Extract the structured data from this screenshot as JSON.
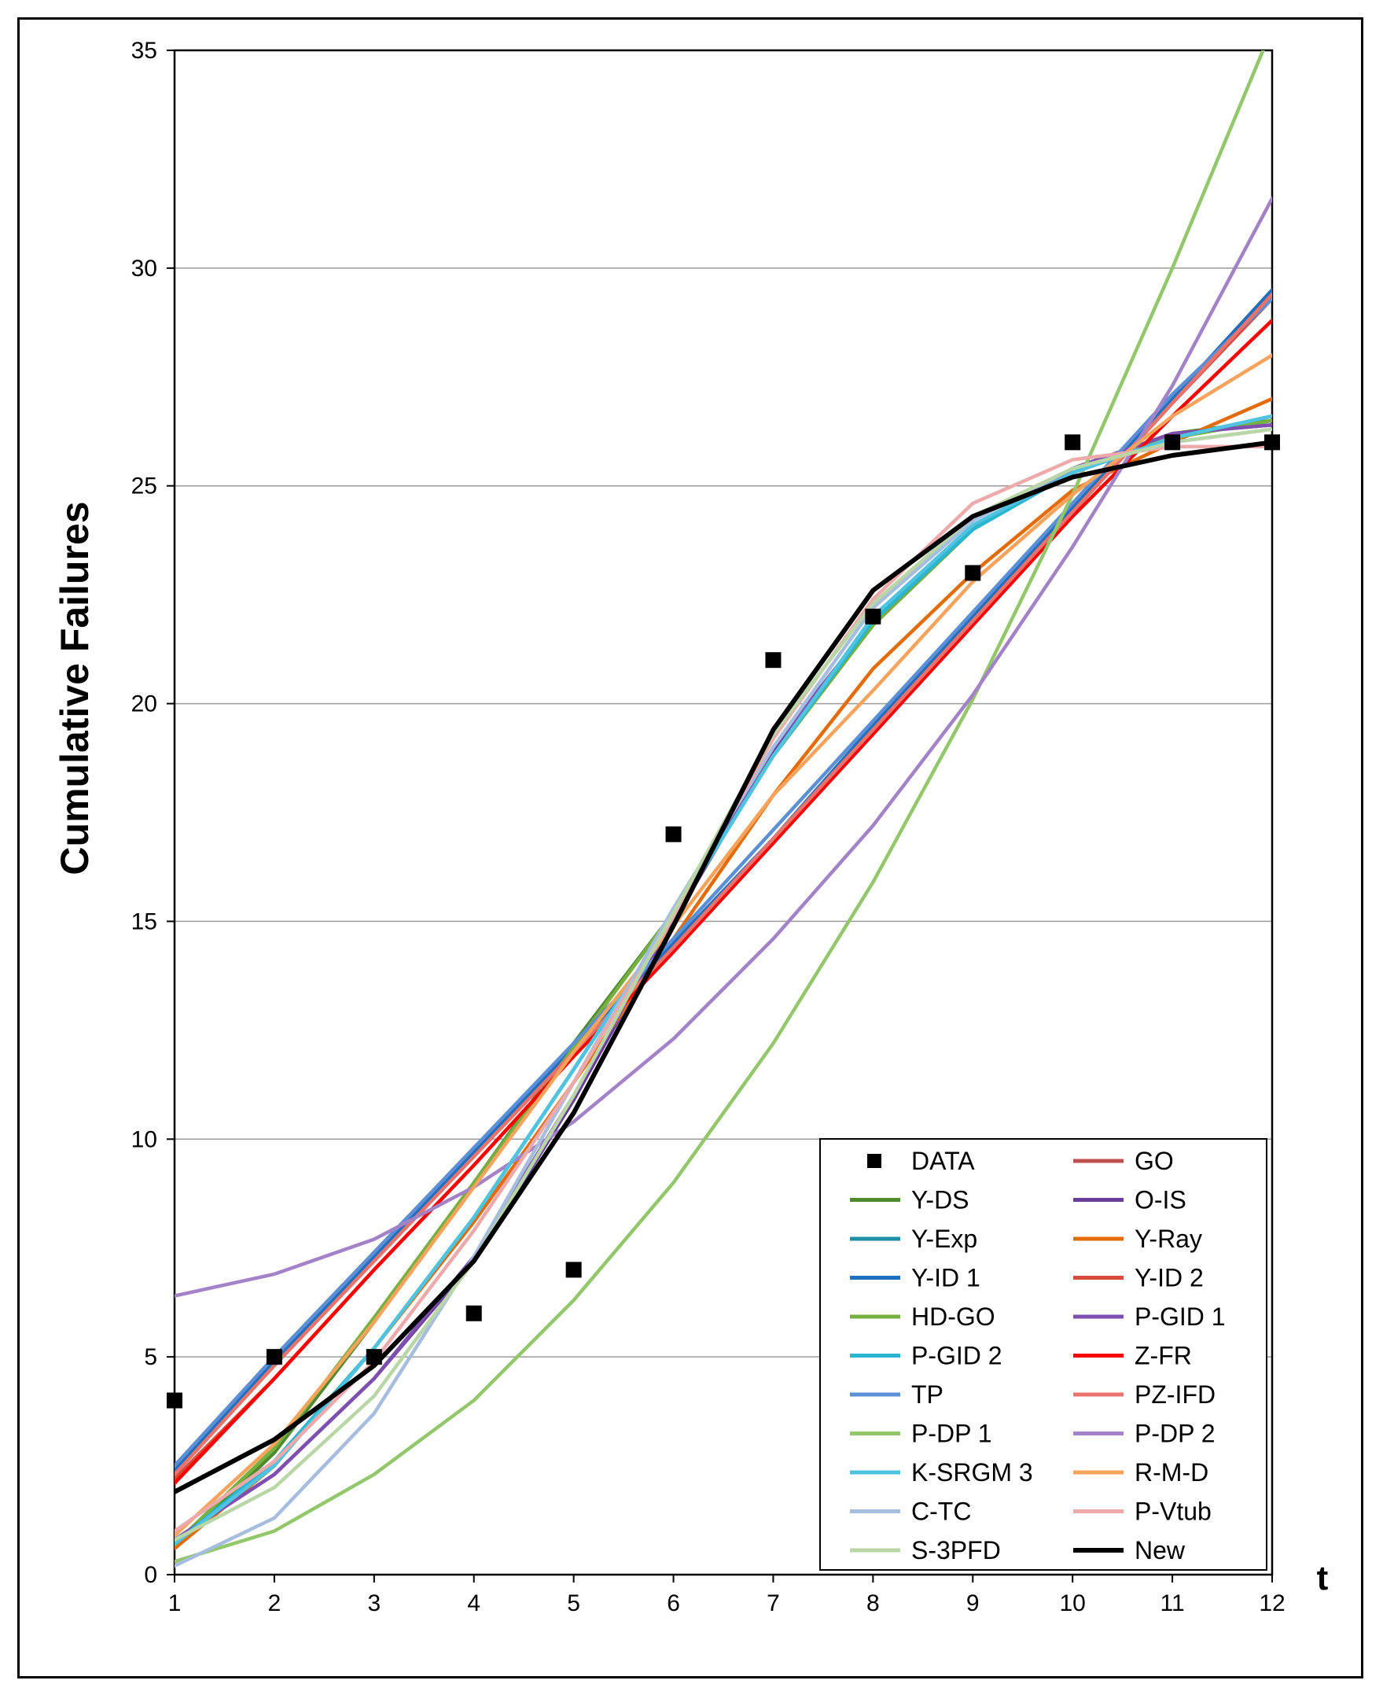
{
  "chart_data": {
    "type": "line",
    "title": "",
    "xlabel": "t",
    "ylabel": "Cumulative Failures",
    "x": [
      1,
      2,
      3,
      4,
      5,
      6,
      7,
      8,
      9,
      10,
      11,
      12
    ],
    "xlim": [
      1,
      12
    ],
    "ylim": [
      0,
      35
    ],
    "xticks": [
      "1",
      "2",
      "3",
      "4",
      "5",
      "6",
      "7",
      "8",
      "9",
      "10",
      "11",
      "12"
    ],
    "yticks": [
      "0",
      "5",
      "10",
      "15",
      "20",
      "25",
      "30",
      "35"
    ],
    "grid": "horizontal",
    "legend_position": "bottom-right",
    "data_points": {
      "name": "DATA",
      "color": "#000000",
      "values": [
        4,
        5,
        5,
        6,
        7,
        17,
        21,
        22,
        23,
        26,
        26,
        26
      ]
    },
    "series": [
      {
        "name": "GO",
        "color": "#c0504d",
        "values": [
          2.5,
          5.0,
          7.4,
          9.8,
          12.1,
          14.4,
          16.8,
          19.4,
          21.9,
          24.4,
          26.9,
          29.4
        ]
      },
      {
        "name": "Y-DS",
        "color": "#4f8a2f",
        "values": [
          0.6,
          2.8,
          5.8,
          9.0,
          12.2,
          15.2,
          18.9,
          21.9,
          24.0,
          25.4,
          26.2,
          26.5
        ]
      },
      {
        "name": "O-IS",
        "color": "#6a3d9a",
        "values": [
          0.8,
          2.3,
          4.5,
          7.2,
          10.9,
          15.0,
          18.9,
          21.9,
          24.0,
          25.4,
          26.2,
          26.4
        ]
      },
      {
        "name": "Y-Exp",
        "color": "#1f8fa8",
        "values": [
          0.7,
          2.6,
          5.2,
          8.2,
          11.6,
          15.1,
          18.8,
          22.0,
          24.0,
          25.3,
          26.1,
          26.6
        ]
      },
      {
        "name": "Y-Ray",
        "color": "#e36c09",
        "values": [
          0.6,
          2.5,
          5.2,
          8.1,
          11.3,
          14.6,
          17.9,
          20.8,
          23.0,
          24.9,
          26.0,
          27.0
        ]
      },
      {
        "name": " Y-ID 1",
        "color": "#1f6fbf",
        "values": [
          2.4,
          4.9,
          7.3,
          9.7,
          12.1,
          14.5,
          16.9,
          19.5,
          22.0,
          24.5,
          27.0,
          29.5
        ]
      },
      {
        "name": "Y-ID 2",
        "color": "#d84a3a",
        "values": [
          2.2,
          4.5,
          7.0,
          9.4,
          11.9,
          14.3,
          16.9,
          19.4,
          21.9,
          24.4,
          26.9,
          29.3
        ]
      },
      {
        "name": "HD-GO",
        "color": "#76b041",
        "values": [
          0.7,
          2.9,
          5.9,
          9.0,
          12.1,
          15.2,
          18.8,
          21.8,
          24.0,
          25.4,
          26.1,
          26.5
        ]
      },
      {
        "name": "P-GID 1",
        "color": "#7f4fb0",
        "values": [
          0.8,
          2.3,
          4.5,
          7.3,
          11.0,
          15.1,
          19.0,
          21.9,
          24.0,
          25.4,
          26.2,
          26.4
        ]
      },
      {
        "name": "P-GID 2",
        "color": "#2ab5d0",
        "values": [
          0.7,
          2.6,
          5.2,
          8.2,
          11.6,
          15.1,
          18.8,
          21.9,
          24.0,
          25.3,
          26.1,
          26.6
        ]
      },
      {
        "name": "Z-FR",
        "color": "#ff0000",
        "values": [
          2.1,
          4.5,
          7.0,
          9.4,
          11.9,
          14.3,
          16.8,
          19.3,
          21.8,
          24.3,
          26.6,
          28.8
        ]
      },
      {
        "name": "TP",
        "color": "#5b8fd6",
        "values": [
          2.5,
          5.0,
          7.4,
          9.8,
          12.2,
          14.6,
          17.1,
          19.6,
          22.1,
          24.6,
          27.1,
          29.3
        ]
      },
      {
        "name": "PZ-IFD",
        "color": "#e8736c",
        "values": [
          2.3,
          4.8,
          7.2,
          9.6,
          12.0,
          14.4,
          16.9,
          19.4,
          21.9,
          24.4,
          26.9,
          29.4
        ]
      },
      {
        "name": "P-DP 1",
        "color": "#92c76b",
        "values": [
          0.3,
          1.0,
          2.3,
          4.0,
          6.3,
          9.0,
          12.2,
          15.9,
          20.1,
          24.8,
          30.0,
          35.5
        ]
      },
      {
        "name": "P-DP 2",
        "color": "#a482c8",
        "values": [
          6.4,
          6.9,
          7.7,
          8.9,
          10.4,
          12.3,
          14.6,
          17.2,
          20.2,
          23.6,
          27.3,
          31.6
        ]
      },
      {
        "name": "K-SRGM 3",
        "color": "#4fc3df",
        "values": [
          0.7,
          2.5,
          5.2,
          8.2,
          11.6,
          15.1,
          18.8,
          22.0,
          24.1,
          25.3,
          26.1,
          26.6
        ]
      },
      {
        "name": "R-M-D",
        "color": "#f7a35c",
        "values": [
          0.9,
          3.0,
          5.8,
          8.9,
          12.0,
          14.9,
          17.9,
          20.3,
          22.8,
          24.8,
          26.6,
          28.0
        ]
      },
      {
        "name": "C-TC",
        "color": "#a6bddf",
        "values": [
          0.2,
          1.3,
          3.7,
          7.3,
          11.3,
          15.3,
          19.0,
          22.2,
          24.2,
          25.4,
          26.0,
          26.3
        ]
      },
      {
        "name": "P-Vtub",
        "color": "#eeaaaa",
        "values": [
          1.0,
          2.6,
          4.9,
          7.9,
          11.3,
          15.1,
          19.2,
          22.4,
          24.6,
          25.6,
          25.9,
          25.9
        ]
      },
      {
        "name": "S-3PFD",
        "color": "#b9d6a6",
        "values": [
          0.8,
          2.0,
          4.1,
          7.2,
          11.0,
          15.2,
          19.3,
          22.3,
          24.3,
          25.4,
          26.0,
          26.3
        ]
      },
      {
        "name": "New",
        "color": "#000000",
        "values": [
          1.9,
          3.1,
          4.8,
          7.2,
          10.6,
          14.9,
          19.4,
          22.6,
          24.3,
          25.2,
          25.7,
          26.0
        ]
      }
    ]
  }
}
